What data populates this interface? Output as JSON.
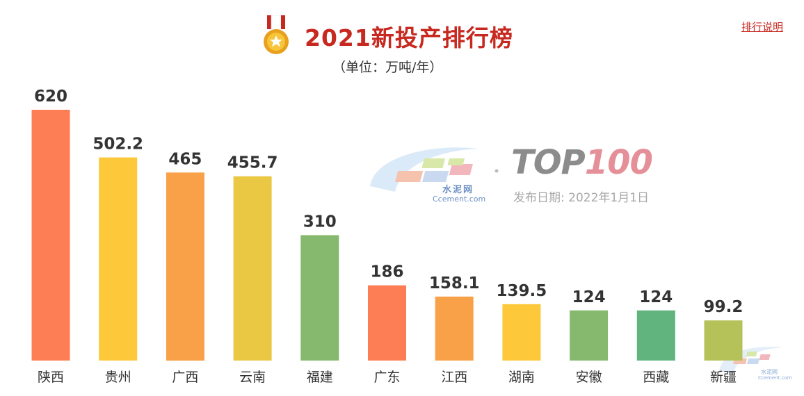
{
  "header": {
    "title": "2021新投产排行榜",
    "unit": "（单位：万吨/年）",
    "explain_link": "排行说明"
  },
  "watermark": {
    "logo_text": "水泥网",
    "logo_url_text": "Ccement.com",
    "top_prefix": "TOP",
    "top_suffix": "100",
    "publish_date": "发布日期: 2022年1月1日",
    "corner_logo_text": "水泥网",
    "corner_logo_url_text": "Ccement.com"
  },
  "colors": {
    "title": "#c7281f",
    "orange_red": "#fd7e55",
    "yellow": "#fdc93a",
    "orange": "#f8a149",
    "mustard": "#eac843",
    "green": "#86b96e",
    "teal_green": "#62b47e",
    "olive": "#b5c259"
  },
  "chart_data": {
    "type": "bar",
    "categories": [
      "陕西",
      "贵州",
      "广西",
      "云南",
      "福建",
      "广东",
      "江西",
      "湖南",
      "安徽",
      "西藏",
      "新疆"
    ],
    "values": [
      620,
      502.2,
      465,
      455.7,
      310,
      186,
      158.1,
      139.5,
      124,
      124,
      99.2
    ],
    "value_labels": [
      "620",
      "502.2",
      "465",
      "455.7",
      "310",
      "186",
      "158.1",
      "139.5",
      "124",
      "124",
      "99.2"
    ],
    "bar_colors": [
      "#fd7e55",
      "#fdc93a",
      "#f8a149",
      "#eac843",
      "#86b96e",
      "#fd7e55",
      "#f8a149",
      "#fdc93a",
      "#86b96e",
      "#62b47e",
      "#b5c259"
    ],
    "title": "2021新投产排行榜",
    "ylabel": "",
    "ylim": [
      0,
      620
    ],
    "grid": false,
    "legend": "none"
  }
}
